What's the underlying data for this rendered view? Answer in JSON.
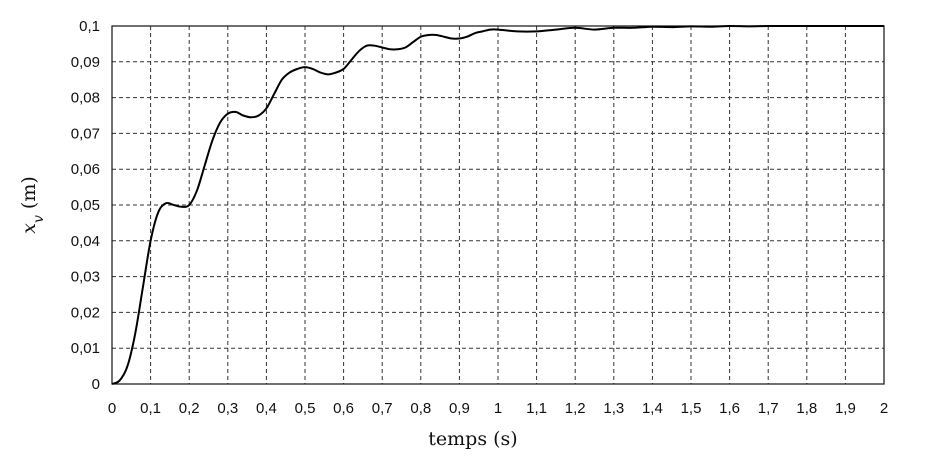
{
  "chart_data": {
    "type": "line",
    "title": "",
    "xlabel": "temps (s)",
    "ylabel_var": "x",
    "ylabel_sub": "v",
    "ylabel_unit": "(m)",
    "xlim": [
      0,
      2
    ],
    "ylim": [
      0,
      0.1
    ],
    "grid": true,
    "legend": "none",
    "x_ticks": [
      "0",
      "0,1",
      "0,2",
      "0,3",
      "0,4",
      "0,5",
      "0,6",
      "0,7",
      "0,8",
      "0,9",
      "1",
      "1,1",
      "1,2",
      "1,3",
      "1,4",
      "1,5",
      "1,6",
      "1,7",
      "1,8",
      "1,9",
      "2"
    ],
    "y_ticks": [
      "0",
      "0,01",
      "0,02",
      "0,03",
      "0,04",
      "0,05",
      "0,06",
      "0,07",
      "0,08",
      "0,09",
      "0,1"
    ],
    "series": [
      {
        "color": "#000000",
        "x": [
          0,
          0.02,
          0.04,
          0.06,
          0.08,
          0.1,
          0.12,
          0.14,
          0.16,
          0.18,
          0.2,
          0.22,
          0.24,
          0.26,
          0.28,
          0.3,
          0.32,
          0.34,
          0.36,
          0.38,
          0.4,
          0.42,
          0.44,
          0.46,
          0.48,
          0.5,
          0.52,
          0.54,
          0.56,
          0.58,
          0.6,
          0.62,
          0.64,
          0.66,
          0.68,
          0.7,
          0.72,
          0.74,
          0.76,
          0.78,
          0.8,
          0.82,
          0.84,
          0.86,
          0.88,
          0.9,
          0.92,
          0.94,
          0.96,
          0.98,
          1.0,
          1.05,
          1.1,
          1.15,
          1.2,
          1.25,
          1.3,
          1.35,
          1.4,
          1.45,
          1.5,
          1.55,
          1.6,
          1.65,
          1.7,
          1.75,
          1.8,
          1.85,
          1.9,
          1.95,
          2.0
        ],
        "y": [
          0,
          0.001,
          0.005,
          0.014,
          0.027,
          0.04,
          0.048,
          0.0505,
          0.05,
          0.0495,
          0.05,
          0.054,
          0.061,
          0.068,
          0.073,
          0.0755,
          0.076,
          0.075,
          0.0745,
          0.075,
          0.077,
          0.081,
          0.085,
          0.087,
          0.088,
          0.0885,
          0.088,
          0.087,
          0.0865,
          0.087,
          0.088,
          0.0905,
          0.093,
          0.0945,
          0.0945,
          0.094,
          0.0935,
          0.0935,
          0.094,
          0.0955,
          0.097,
          0.0975,
          0.0975,
          0.097,
          0.0965,
          0.0965,
          0.097,
          0.098,
          0.0985,
          0.099,
          0.099,
          0.0985,
          0.0985,
          0.099,
          0.0995,
          0.099,
          0.0995,
          0.0995,
          0.0998,
          0.0997,
          0.0999,
          0.0998,
          0.1,
          0.0999,
          0.1,
          0.1,
          0.1,
          0.1,
          0.1,
          0.1,
          0.1
        ]
      }
    ]
  }
}
